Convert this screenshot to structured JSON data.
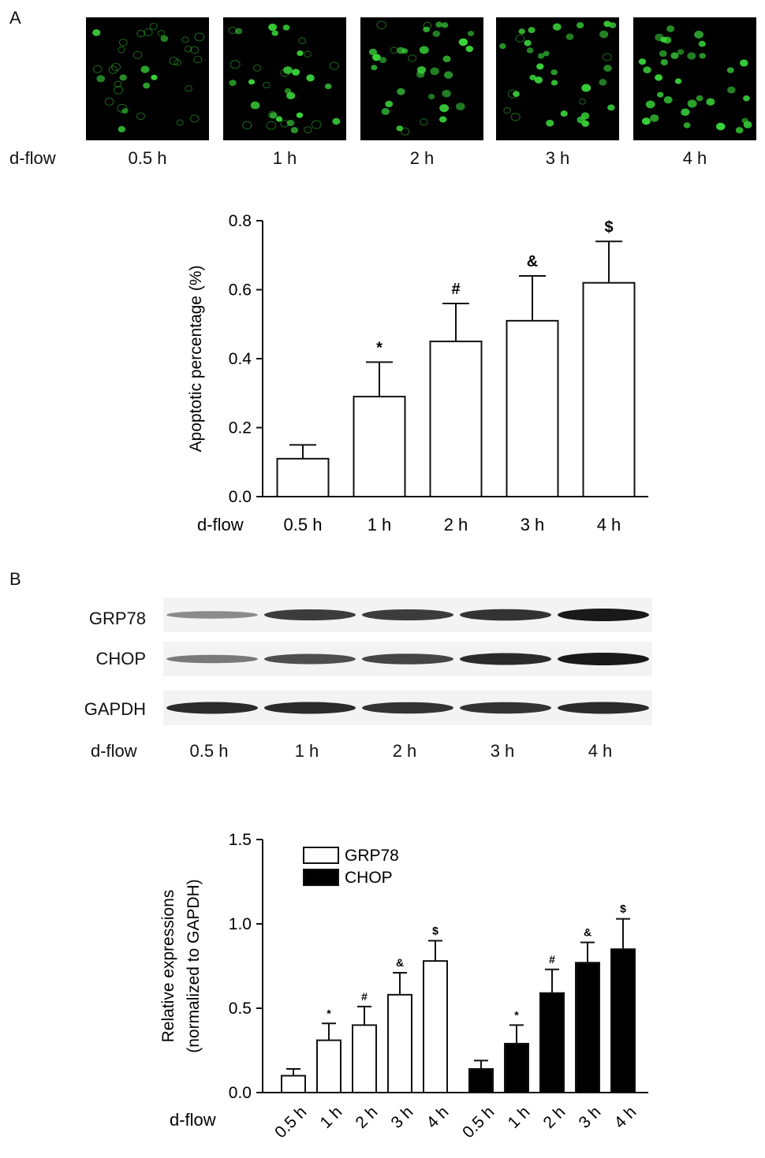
{
  "panel_a": {
    "letter": "A",
    "row_label": "d-flow",
    "timepoints": [
      "0.5 h",
      "1 h",
      "2 h",
      "3 h",
      "4 h"
    ],
    "fluorescence_color": "#39d43a",
    "cell_density": [
      0.25,
      0.45,
      0.65,
      0.8,
      1.0
    ]
  },
  "panel_b": {
    "letter": "B",
    "row_label": "d-flow",
    "blot_rows": [
      "GRP78",
      "CHOP",
      "GAPDH"
    ],
    "lanes": [
      "0.5 h",
      "1 h",
      "2 h",
      "3 h",
      "4 h"
    ],
    "band_intensity": {
      "GRP78": [
        0.35,
        0.8,
        0.8,
        0.85,
        1.0
      ],
      "CHOP": [
        0.45,
        0.7,
        0.75,
        0.9,
        1.0
      ],
      "GAPDH": [
        0.9,
        0.9,
        0.85,
        0.85,
        0.9
      ]
    }
  },
  "chart_data": [
    {
      "type": "bar",
      "title": "",
      "xlabel": "d-flow",
      "ylabel": "Apoptotic percentage (%)",
      "categories": [
        "0.5 h",
        "1 h",
        "2 h",
        "3 h",
        "4 h"
      ],
      "values": [
        0.11,
        0.29,
        0.45,
        0.51,
        0.62
      ],
      "errors": [
        0.04,
        0.1,
        0.11,
        0.13,
        0.12
      ],
      "annotations": [
        "",
        "*",
        "#",
        "&",
        "$"
      ],
      "ylim": [
        0,
        0.8
      ],
      "yticks": [
        "0.0",
        "0.2",
        "0.4",
        "0.6",
        "0.8"
      ],
      "bar_fill": "#ffffff",
      "grid": false
    },
    {
      "type": "bar",
      "title": "",
      "xlabel": "d-flow",
      "ylabel": "Relative expressions",
      "ylabel2": "(normalized to GAPDH)",
      "categories": [
        "0.5 h",
        "1 h",
        "2 h",
        "3 h",
        "4 h"
      ],
      "series": [
        {
          "name": "GRP78",
          "values": [
            0.1,
            0.31,
            0.4,
            0.58,
            0.78
          ],
          "errors": [
            0.04,
            0.1,
            0.11,
            0.13,
            0.12
          ],
          "annotations": [
            "",
            "*",
            "#",
            "&",
            "$"
          ],
          "fill": "#ffffff"
        },
        {
          "name": "CHOP",
          "values": [
            0.14,
            0.29,
            0.59,
            0.77,
            0.85
          ],
          "errors": [
            0.05,
            0.11,
            0.14,
            0.12,
            0.18
          ],
          "annotations": [
            "",
            "*",
            "#",
            "&",
            "$"
          ],
          "fill": "#000000"
        }
      ],
      "ylim": [
        0,
        1.5
      ],
      "yticks": [
        "0.0",
        "0.5",
        "1.0",
        "1.5"
      ],
      "legend": "top-left",
      "grid": false
    }
  ]
}
